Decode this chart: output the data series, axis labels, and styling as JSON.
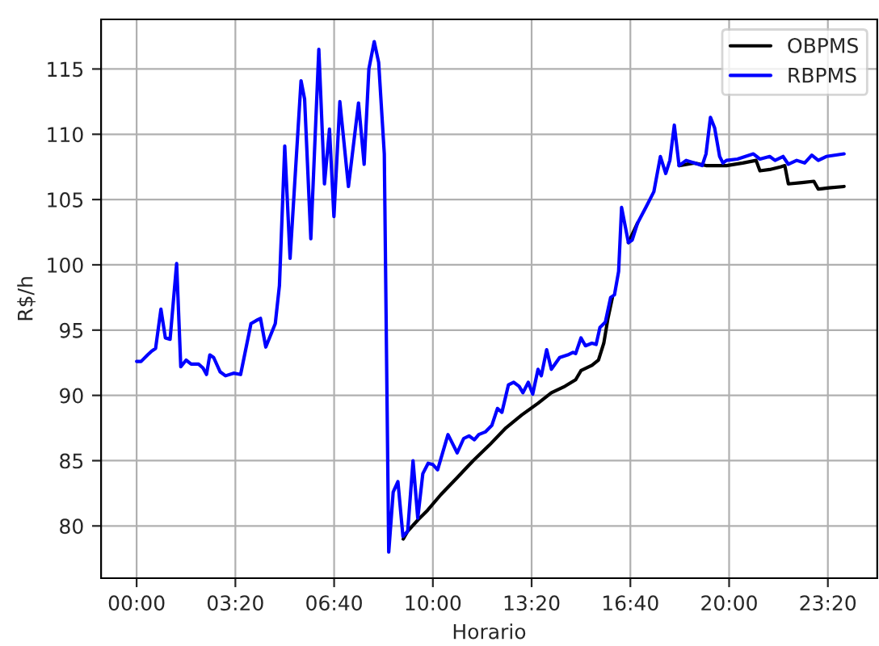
{
  "chart_data": {
    "type": "line",
    "xlabel": "Horario",
    "ylabel": "R$/h",
    "xlim": [
      -1.2,
      25.0
    ],
    "ylim": [
      76.0,
      118.8
    ],
    "xticks": [
      {
        "value": 0,
        "label": "00:00"
      },
      {
        "value": 3.3333,
        "label": "03:20"
      },
      {
        "value": 6.6667,
        "label": "06:40"
      },
      {
        "value": 10,
        "label": "10:00"
      },
      {
        "value": 13.3333,
        "label": "13:20"
      },
      {
        "value": 16.6667,
        "label": "16:40"
      },
      {
        "value": 20,
        "label": "20:00"
      },
      {
        "value": 23.3333,
        "label": "23:20"
      }
    ],
    "yticks": [
      80,
      85,
      90,
      95,
      100,
      105,
      110,
      115
    ],
    "grid": true,
    "legend": "top right",
    "series": [
      {
        "name": "OBPMS",
        "color": "#000000",
        "x": [
          9.0,
          9.15,
          9.51,
          9.82,
          10.27,
          10.82,
          11.36,
          11.91,
          12.46,
          13.0,
          13.55,
          14.0,
          14.46,
          14.82,
          15.0,
          15.37,
          15.59,
          15.77,
          15.91,
          16.06,
          16.37,
          16.6,
          16.91,
          17.19,
          17.46,
          17.68,
          17.86,
          18.0,
          18.15,
          18.31,
          18.82,
          19.22,
          19.91,
          20.46,
          20.91,
          21.04,
          21.37,
          21.73,
          21.88,
          22.0,
          22.46,
          22.86,
          23.01,
          23.37,
          23.88
        ],
        "values": [
          79.0,
          79.6,
          80.5,
          81.2,
          82.4,
          83.7,
          85.0,
          86.2,
          87.5,
          88.5,
          89.4,
          90.2,
          90.7,
          91.2,
          91.9,
          92.3,
          92.7,
          94.0,
          95.9,
          97.5,
          null,
          101.7,
          103.2,
          null,
          null,
          null,
          null,
          null,
          null,
          107.6,
          107.8,
          107.6,
          107.6,
          107.8,
          108.0,
          107.2,
          107.3,
          107.5,
          107.6,
          106.2,
          106.3,
          106.4,
          105.8,
          105.9,
          106.0
        ]
      },
      {
        "name": "RBPMS",
        "color": "#0000ff",
        "x": [
          0,
          0.15,
          0.37,
          0.51,
          0.64,
          0.82,
          0.97,
          1.13,
          1.35,
          1.49,
          1.67,
          1.84,
          2.09,
          2.24,
          2.36,
          2.47,
          2.6,
          2.82,
          3.0,
          3.27,
          3.51,
          3.86,
          4.09,
          4.18,
          4.36,
          4.68,
          4.82,
          5.0,
          5.18,
          5.55,
          5.67,
          5.88,
          6.15,
          6.34,
          6.51,
          6.66,
          6.86,
          7.15,
          7.49,
          7.68,
          7.84,
          8.02,
          8.17,
          8.36,
          8.51,
          8.66,
          8.82,
          8.99,
          9.15,
          9.33,
          9.49,
          9.66,
          9.84,
          10.0,
          10.16,
          10.51,
          10.82,
          11.04,
          11.22,
          11.4,
          11.55,
          11.77,
          11.99,
          12.18,
          12.33,
          12.55,
          12.73,
          12.91,
          13.04,
          13.22,
          13.37,
          13.55,
          13.66,
          13.84,
          14.0,
          14.28,
          14.55,
          14.73,
          14.82,
          15.0,
          15.15,
          15.37,
          15.51,
          15.64,
          15.82,
          16.0,
          16.13,
          16.27,
          16.37,
          16.6,
          16.73,
          16.91,
          17.19,
          17.46,
          17.68,
          17.86,
          18.0,
          18.15,
          18.31,
          18.55,
          18.82,
          19.09,
          19.22,
          19.37,
          19.51,
          19.68,
          19.79,
          19.91,
          20.28,
          20.55,
          20.82,
          21.04,
          21.37,
          21.55,
          21.82,
          22.0,
          22.28,
          22.55,
          22.79,
          23.01,
          23.28,
          23.88
        ],
        "values": [
          92.6,
          92.6,
          93.1,
          93.4,
          93.6,
          96.6,
          94.4,
          94.3,
          100.1,
          92.2,
          92.7,
          92.4,
          92.4,
          92.1,
          91.6,
          93.1,
          92.9,
          91.8,
          91.5,
          91.7,
          91.6,
          95.5,
          95.8,
          95.9,
          93.7,
          95.5,
          98.4,
          109.1,
          100.5,
          114.1,
          112.7,
          102.0,
          116.5,
          106.2,
          110.4,
          103.7,
          112.5,
          106.0,
          112.4,
          107.7,
          115.0,
          117.1,
          115.5,
          108.5,
          78.0,
          82.6,
          83.4,
          79.2,
          79.6,
          85.0,
          80.6,
          84.0,
          84.8,
          84.7,
          84.3,
          87.0,
          85.6,
          86.7,
          86.9,
          86.6,
          87.0,
          87.2,
          87.7,
          89.0,
          88.7,
          90.8,
          91.0,
          90.7,
          90.2,
          91.0,
          90.1,
          92.0,
          91.5,
          93.5,
          92.0,
          92.9,
          93.1,
          93.3,
          93.2,
          94.4,
          93.8,
          94.0,
          93.9,
          95.2,
          95.6,
          97.5,
          97.7,
          99.5,
          104.4,
          101.7,
          101.9,
          103.2,
          104.4,
          105.6,
          108.3,
          107.0,
          108.0,
          110.7,
          107.6,
          108.0,
          107.8,
          107.6,
          108.5,
          111.3,
          110.5,
          108.3,
          107.8,
          108.0,
          108.1,
          108.3,
          108.5,
          108.1,
          108.3,
          108.0,
          108.3,
          107.7,
          108.0,
          107.8,
          108.4,
          108.0,
          108.3,
          108.5
        ]
      }
    ]
  }
}
